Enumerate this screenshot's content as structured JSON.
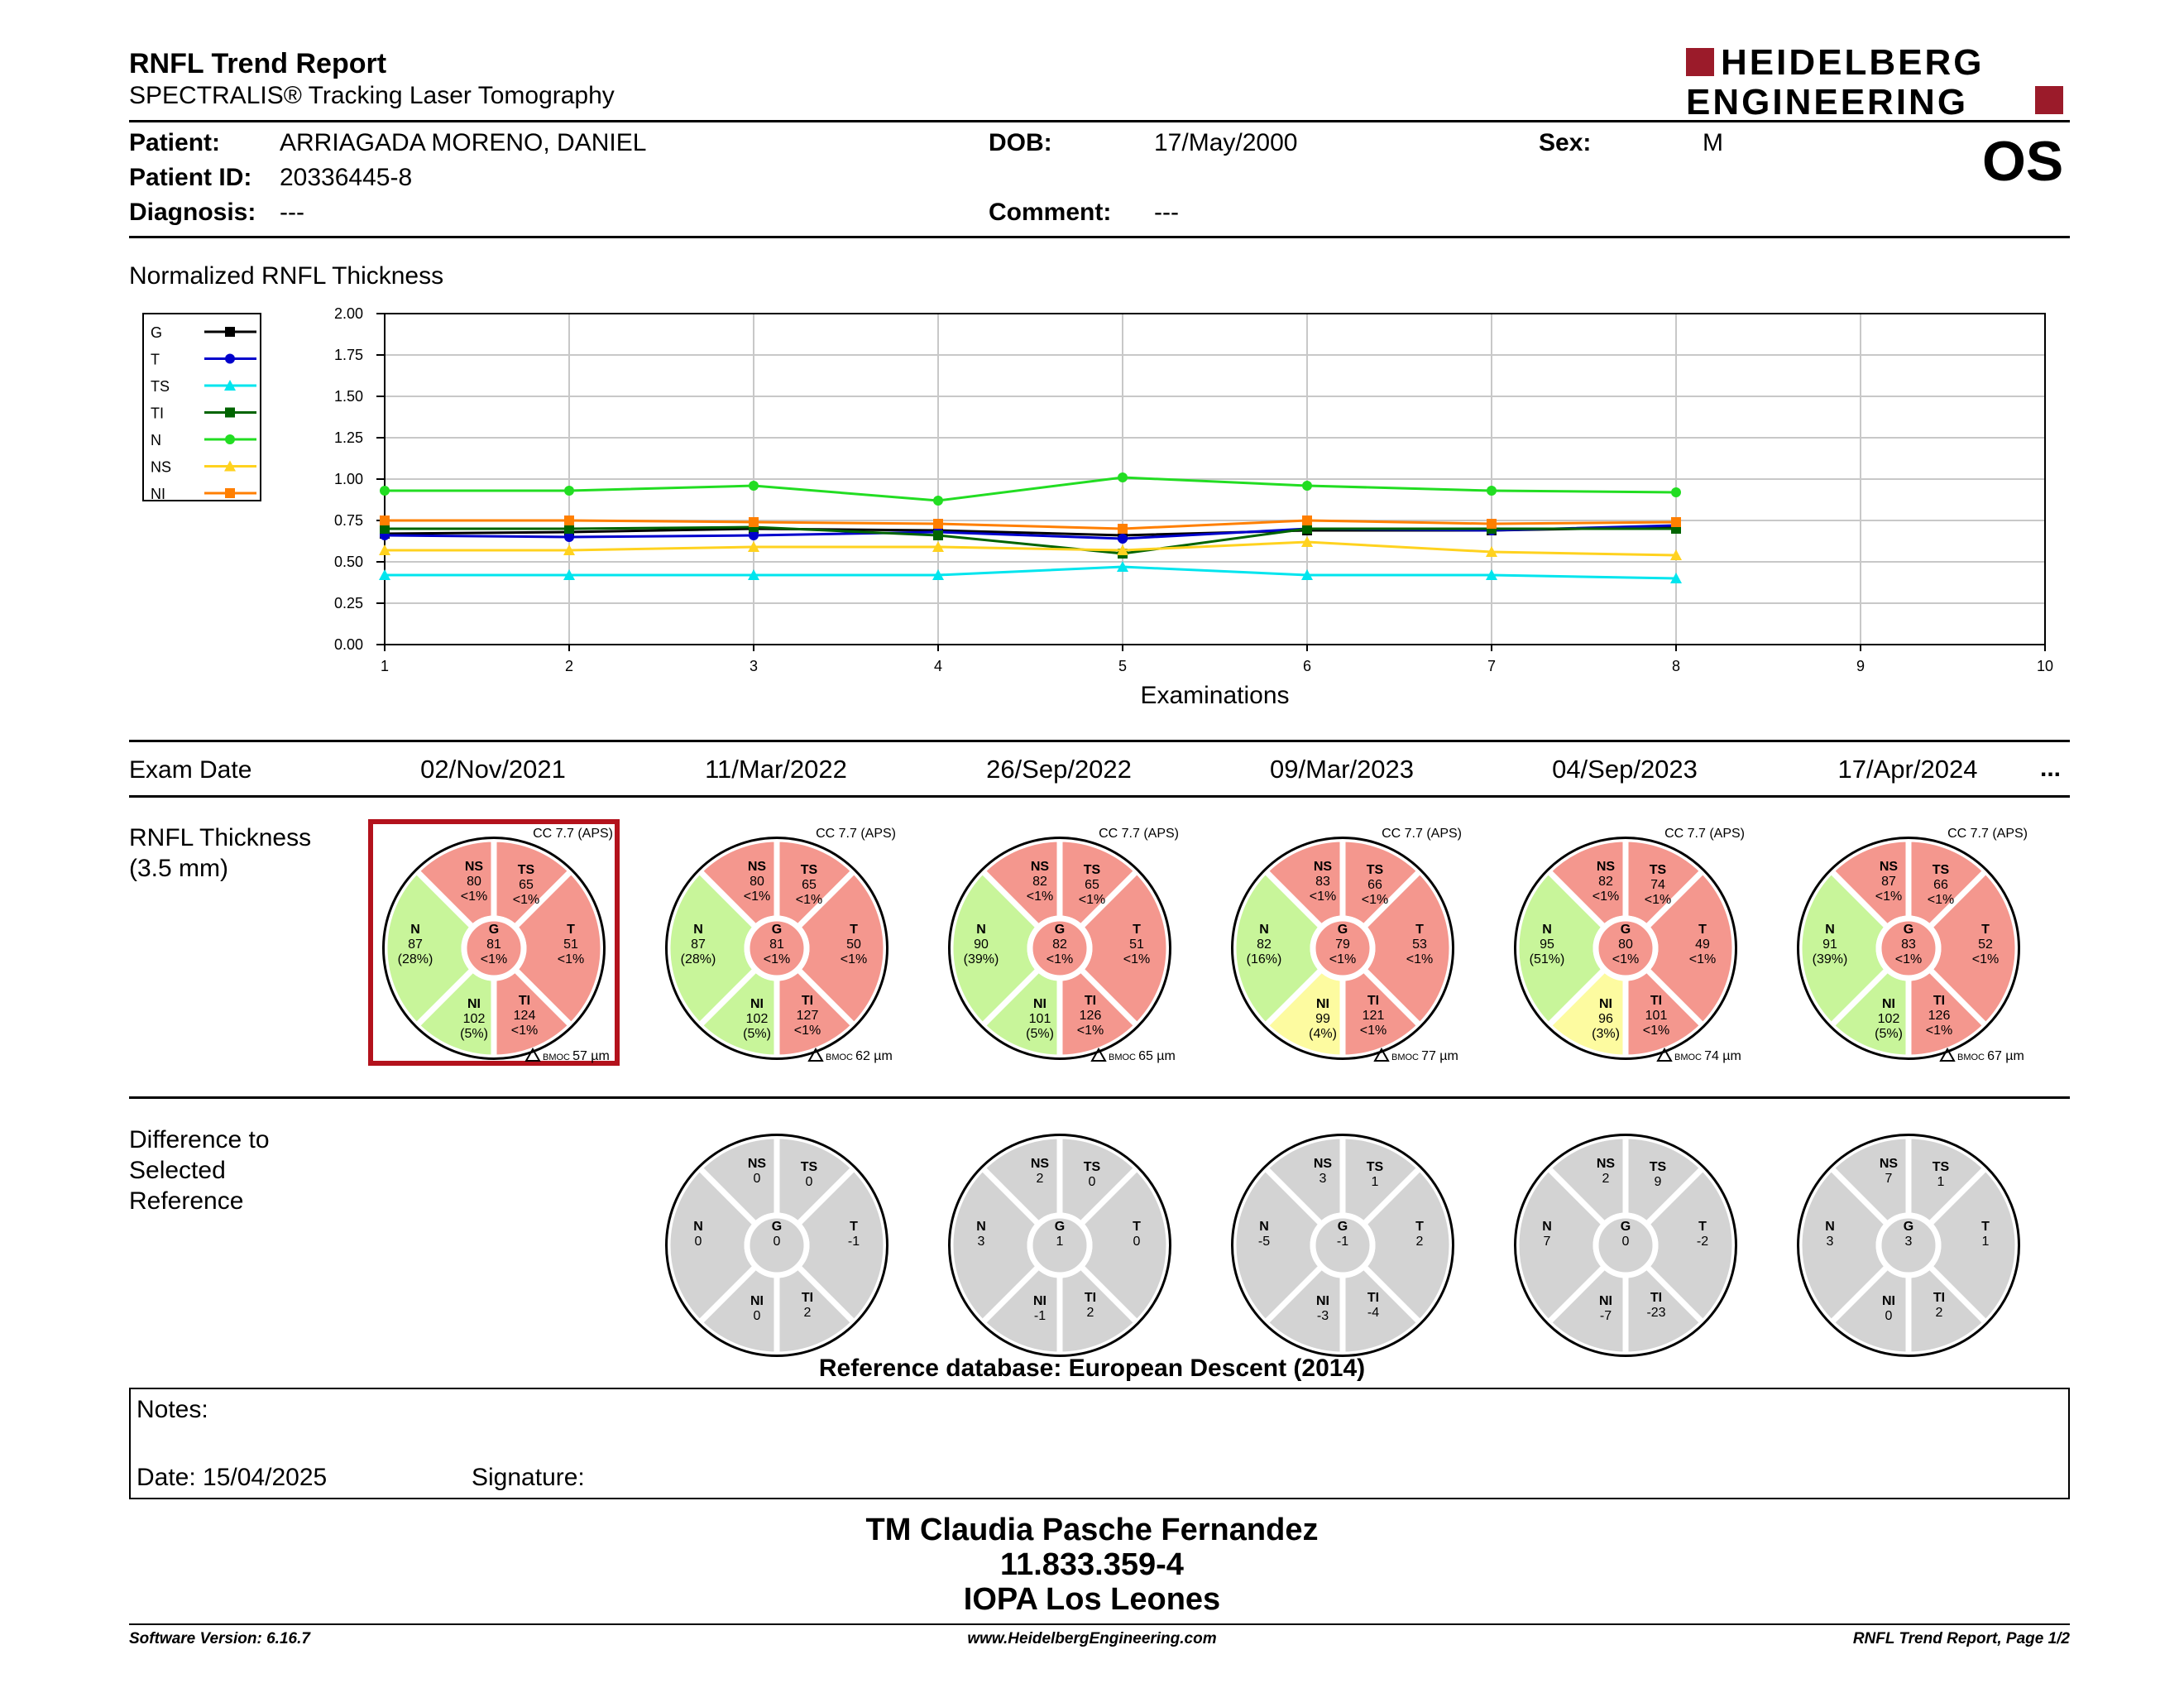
{
  "report": {
    "title": "RNFL Trend Report",
    "subtitle": "SPECTRALIS® Tracking Laser Tomography",
    "eye": "OS",
    "logo_lines": [
      "HEIDELBERG",
      "ENGINEERING"
    ],
    "brand_color": "#9b1b2a"
  },
  "patient": {
    "patient_label": "Patient:",
    "name": "ARRIAGADA MORENO, DANIEL",
    "id_label": "Patient ID:",
    "id": "20336445-8",
    "diagnosis_label": "Diagnosis:",
    "diagnosis": "---",
    "dob_label": "DOB:",
    "dob": "17/May/2000",
    "comment_label": "Comment:",
    "comment": "---",
    "sex_label": "Sex:",
    "sex": "M"
  },
  "chart_data": {
    "type": "line",
    "title": "Normalized RNFL Thickness",
    "xlabel": "Examinations",
    "ylabel": "",
    "x": [
      1,
      2,
      3,
      4,
      5,
      6,
      7,
      8
    ],
    "xlim": [
      1,
      10
    ],
    "ylim": [
      0,
      2
    ],
    "x_ticks": [
      "1",
      "2",
      "3",
      "4",
      "5",
      "6",
      "7",
      "8",
      "9",
      "10"
    ],
    "y_ticks": [
      "0.00",
      "0.25",
      "0.50",
      "0.75",
      "1.00",
      "1.25",
      "1.50",
      "1.75",
      "2.00"
    ],
    "grid": true,
    "legend_position": "left",
    "series": [
      {
        "name": "G",
        "color": "#000000",
        "marker": "square",
        "values": [
          0.67,
          0.68,
          0.7,
          0.69,
          0.66,
          0.69,
          0.69,
          0.71
        ]
      },
      {
        "name": "T",
        "color": "#0000cc",
        "marker": "circle",
        "values": [
          0.66,
          0.65,
          0.66,
          0.68,
          0.64,
          0.7,
          0.69,
          0.72
        ]
      },
      {
        "name": "TS",
        "color": "#00e5ee",
        "marker": "triangle",
        "values": [
          0.42,
          0.42,
          0.42,
          0.42,
          0.47,
          0.42,
          0.42,
          0.4
        ]
      },
      {
        "name": "TI",
        "color": "#006400",
        "marker": "square",
        "values": [
          0.7,
          0.7,
          0.71,
          0.66,
          0.55,
          0.7,
          0.7,
          0.7
        ]
      },
      {
        "name": "N",
        "color": "#22dd22",
        "marker": "circle",
        "values": [
          0.93,
          0.93,
          0.96,
          0.87,
          1.01,
          0.96,
          0.93,
          0.92
        ]
      },
      {
        "name": "NS",
        "color": "#ffd21f",
        "marker": "triangle",
        "values": [
          0.57,
          0.57,
          0.59,
          0.59,
          0.57,
          0.62,
          0.56,
          0.54
        ]
      },
      {
        "name": "NI",
        "color": "#ff7f00",
        "marker": "square",
        "values": [
          0.75,
          0.75,
          0.74,
          0.73,
          0.7,
          0.75,
          0.73,
          0.74
        ]
      }
    ]
  },
  "exams": {
    "label": "Exam Date",
    "more": "...",
    "dates": [
      "02/Nov/2021",
      "11/Mar/2022",
      "26/Sep/2022",
      "09/Mar/2023",
      "04/Sep/2023",
      "17/Apr/2024"
    ]
  },
  "thickness": {
    "label_line1": "RNFL Thickness",
    "label_line2": "(3.5 mm)",
    "colors": {
      "red": "#f4978e",
      "green": "#c8f59a",
      "yellow": "#fdfba0",
      "gray": "#d3d3d3"
    },
    "bmoc_prefix": "BMOC",
    "circles": [
      {
        "cc": "CC 7.7 (APS)",
        "bmoc": "57 µm",
        "selected": true,
        "NS": [
          "NS",
          "80",
          "<1%",
          "red"
        ],
        "TS": [
          "TS",
          "65",
          "<1%",
          "red"
        ],
        "N": [
          "N",
          "87",
          "(28%)",
          "green"
        ],
        "G": [
          "G",
          "81",
          "<1%",
          "red"
        ],
        "T": [
          "T",
          "51",
          "<1%",
          "red"
        ],
        "NI": [
          "NI",
          "102",
          "(5%)",
          "green"
        ],
        "TI": [
          "TI",
          "124",
          "<1%",
          "red"
        ]
      },
      {
        "cc": "CC 7.7 (APS)",
        "bmoc": "62 µm",
        "selected": false,
        "NS": [
          "NS",
          "80",
          "<1%",
          "red"
        ],
        "TS": [
          "TS",
          "65",
          "<1%",
          "red"
        ],
        "N": [
          "N",
          "87",
          "(28%)",
          "green"
        ],
        "G": [
          "G",
          "81",
          "<1%",
          "red"
        ],
        "T": [
          "T",
          "50",
          "<1%",
          "red"
        ],
        "NI": [
          "NI",
          "102",
          "(5%)",
          "green"
        ],
        "TI": [
          "TI",
          "127",
          "<1%",
          "red"
        ]
      },
      {
        "cc": "CC 7.7 (APS)",
        "bmoc": "65 µm",
        "selected": false,
        "NS": [
          "NS",
          "82",
          "<1%",
          "red"
        ],
        "TS": [
          "TS",
          "65",
          "<1%",
          "red"
        ],
        "N": [
          "N",
          "90",
          "(39%)",
          "green"
        ],
        "G": [
          "G",
          "82",
          "<1%",
          "red"
        ],
        "T": [
          "T",
          "51",
          "<1%",
          "red"
        ],
        "NI": [
          "NI",
          "101",
          "(5%)",
          "green"
        ],
        "TI": [
          "TI",
          "126",
          "<1%",
          "red"
        ]
      },
      {
        "cc": "CC 7.7 (APS)",
        "bmoc": "77 µm",
        "selected": false,
        "NS": [
          "NS",
          "83",
          "<1%",
          "red"
        ],
        "TS": [
          "TS",
          "66",
          "<1%",
          "red"
        ],
        "N": [
          "N",
          "82",
          "(16%)",
          "green"
        ],
        "G": [
          "G",
          "79",
          "<1%",
          "red"
        ],
        "T": [
          "T",
          "53",
          "<1%",
          "red"
        ],
        "NI": [
          "NI",
          "99",
          "(4%)",
          "yellow"
        ],
        "TI": [
          "TI",
          "121",
          "<1%",
          "red"
        ]
      },
      {
        "cc": "CC 7.7 (APS)",
        "bmoc": "74 µm",
        "selected": false,
        "NS": [
          "NS",
          "82",
          "<1%",
          "red"
        ],
        "TS": [
          "TS",
          "74",
          "<1%",
          "red"
        ],
        "N": [
          "N",
          "95",
          "(51%)",
          "green"
        ],
        "G": [
          "G",
          "80",
          "<1%",
          "red"
        ],
        "T": [
          "T",
          "49",
          "<1%",
          "red"
        ],
        "NI": [
          "NI",
          "96",
          "(3%)",
          "yellow"
        ],
        "TI": [
          "TI",
          "101",
          "<1%",
          "red"
        ]
      },
      {
        "cc": "CC 7.7 (APS)",
        "bmoc": "67 µm",
        "selected": false,
        "NS": [
          "NS",
          "87",
          "<1%",
          "red"
        ],
        "TS": [
          "TS",
          "66",
          "<1%",
          "red"
        ],
        "N": [
          "N",
          "91",
          "(39%)",
          "green"
        ],
        "G": [
          "G",
          "83",
          "<1%",
          "red"
        ],
        "T": [
          "T",
          "52",
          "<1%",
          "red"
        ],
        "NI": [
          "NI",
          "102",
          "(5%)",
          "green"
        ],
        "TI": [
          "TI",
          "126",
          "<1%",
          "red"
        ]
      }
    ]
  },
  "difference": {
    "label_lines": [
      "Difference to",
      "Selected",
      "Reference"
    ],
    "circles": [
      {
        "NS": [
          "NS",
          "0"
        ],
        "TS": [
          "TS",
          "0"
        ],
        "N": [
          "N",
          "0"
        ],
        "G": [
          "G",
          "0"
        ],
        "T": [
          "T",
          "-1"
        ],
        "NI": [
          "NI",
          "0"
        ],
        "TI": [
          "TI",
          "2"
        ]
      },
      {
        "NS": [
          "NS",
          "2"
        ],
        "TS": [
          "TS",
          "0"
        ],
        "N": [
          "N",
          "3"
        ],
        "G": [
          "G",
          "1"
        ],
        "T": [
          "T",
          "0"
        ],
        "NI": [
          "NI",
          "-1"
        ],
        "TI": [
          "TI",
          "2"
        ]
      },
      {
        "NS": [
          "NS",
          "3"
        ],
        "TS": [
          "TS",
          "1"
        ],
        "N": [
          "N",
          "-5"
        ],
        "G": [
          "G",
          "-1"
        ],
        "T": [
          "T",
          "2"
        ],
        "NI": [
          "NI",
          "-3"
        ],
        "TI": [
          "TI",
          "-4"
        ]
      },
      {
        "NS": [
          "NS",
          "2"
        ],
        "TS": [
          "TS",
          "9"
        ],
        "N": [
          "N",
          "7"
        ],
        "G": [
          "G",
          "0"
        ],
        "T": [
          "T",
          "-2"
        ],
        "NI": [
          "NI",
          "-7"
        ],
        "TI": [
          "TI",
          "-23"
        ]
      },
      {
        "NS": [
          "NS",
          "7"
        ],
        "TS": [
          "TS",
          "1"
        ],
        "N": [
          "N",
          "3"
        ],
        "G": [
          "G",
          "3"
        ],
        "T": [
          "T",
          "1"
        ],
        "NI": [
          "NI",
          "0"
        ],
        "TI": [
          "TI",
          "2"
        ]
      }
    ]
  },
  "reference_db": "Reference database: European Descent (2014)",
  "notes": {
    "notes_label": "Notes:",
    "date_text": "Date: 15/04/2025",
    "signature_label": "Signature:"
  },
  "stamp": {
    "line1": "TM Claudia Pasche Fernandez",
    "line2": "11.833.359-4",
    "line3": "IOPA Los Leones"
  },
  "footer": {
    "software": "Software Version: 6.16.7",
    "website": "www.HeidelbergEngineering.com",
    "page": "RNFL Trend Report, Page 1/2"
  }
}
